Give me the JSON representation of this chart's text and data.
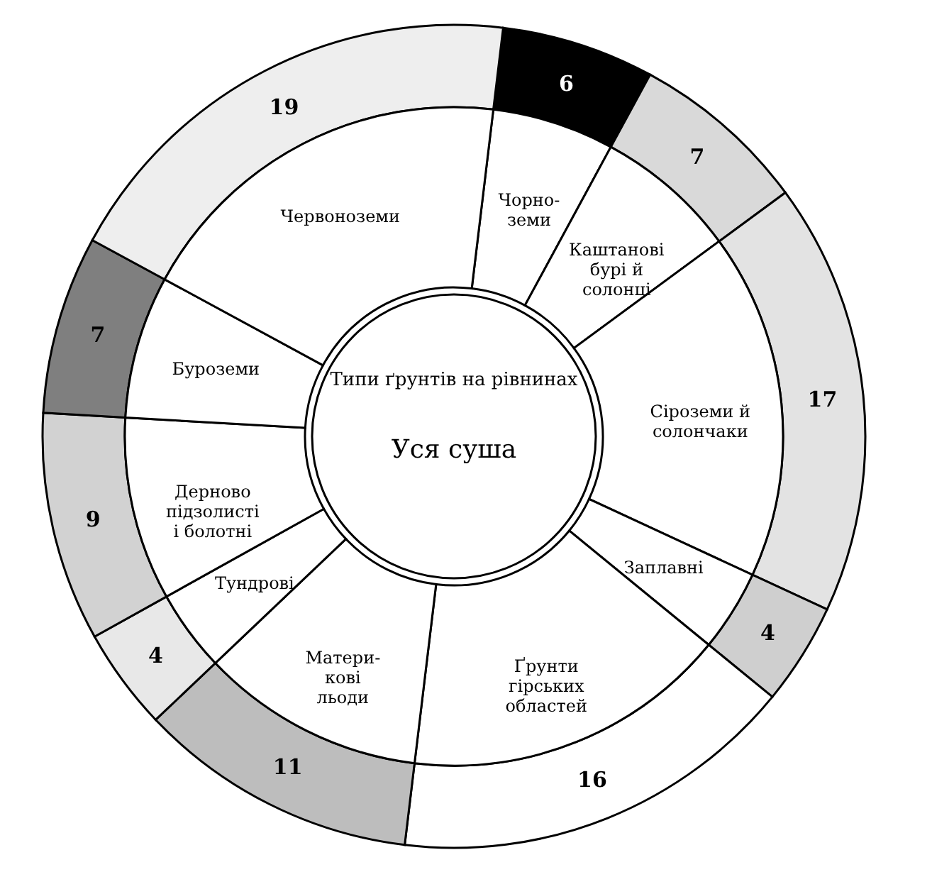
{
  "chart_data": {
    "type": "donut",
    "categories": [
      "Чорно-\nземи",
      "Каштанові\nбурі й\nсолонці",
      "Сіроземи й\nсолончаки",
      "Заплавні",
      "Ґрунти\nгірських\nобластей",
      "Матери-\nкові\nльоди",
      "Тундрові",
      "Дерново\nпідзолисті\nі болотні",
      "Буроземи",
      "Червоноземи"
    ],
    "series": [
      {
        "values": [
          6,
          7,
          17,
          4,
          16,
          11,
          4,
          9,
          7,
          19
        ],
        "colors": [
          "#000000",
          "#d9d9d9",
          "#e3e3e3",
          "#cfcfcf",
          "#ffffff",
          "#bdbdbd",
          "#e8e8e8",
          "#d2d2d2",
          "#7f7f7f",
          "#eeeeee"
        ],
        "value_labels": [
          "6",
          "7",
          "17",
          "4",
          "16",
          "11",
          "4",
          "9",
          "7",
          "19"
        ]
      },
      {
        "values": [
          6,
          7,
          17,
          4,
          16,
          11,
          4,
          9,
          7,
          19
        ],
        "colors": [
          "#ffffff",
          "#ffffff",
          "#ffffff",
          "#ffffff",
          "#ffffff",
          "#ffffff",
          "#ffffff",
          "#ffffff",
          "#ffffff",
          "#ffffff"
        ]
      }
    ],
    "legend": false,
    "annotations": [
      "Типи ґрунтів на рівнинах",
      "Уся суша"
    ]
  }
}
